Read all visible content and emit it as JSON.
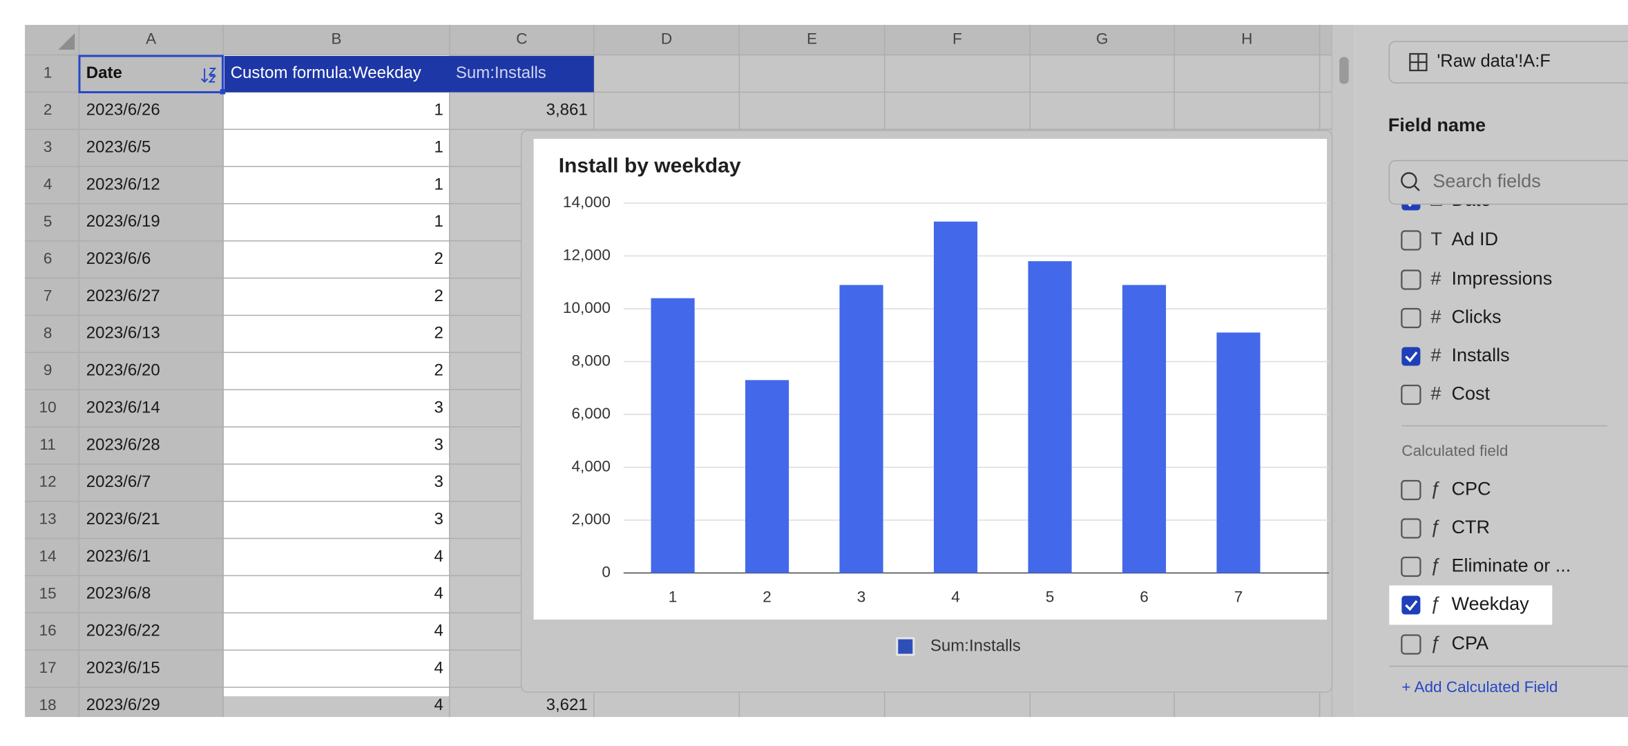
{
  "sheet": {
    "column_headers": [
      "A",
      "B",
      "C",
      "D",
      "E",
      "F",
      "G",
      "H"
    ],
    "row_numbers": [
      "1",
      "2",
      "3",
      "4",
      "5",
      "6",
      "7",
      "8",
      "9",
      "10",
      "11",
      "12",
      "13",
      "14",
      "15",
      "16",
      "17",
      "18"
    ],
    "header": [
      "Date",
      "Custom formula:Weekday",
      "Sum:Installs"
    ],
    "rows": [
      {
        "date": "2023/6/26",
        "weekday": "1",
        "installs": "3,861"
      },
      {
        "date": "2023/6/5",
        "weekday": "1"
      },
      {
        "date": "2023/6/12",
        "weekday": "1"
      },
      {
        "date": "2023/6/19",
        "weekday": "1"
      },
      {
        "date": "2023/6/6",
        "weekday": "2"
      },
      {
        "date": "2023/6/27",
        "weekday": "2"
      },
      {
        "date": "2023/6/13",
        "weekday": "2"
      },
      {
        "date": "2023/6/20",
        "weekday": "2"
      },
      {
        "date": "2023/6/14",
        "weekday": "3"
      },
      {
        "date": "2023/6/28",
        "weekday": "3"
      },
      {
        "date": "2023/6/7",
        "weekday": "3"
      },
      {
        "date": "2023/6/21",
        "weekday": "3"
      },
      {
        "date": "2023/6/1",
        "weekday": "4"
      },
      {
        "date": "2023/6/8",
        "weekday": "4"
      },
      {
        "date": "2023/6/22",
        "weekday": "4"
      },
      {
        "date": "2023/6/15",
        "weekday": "4"
      },
      {
        "date": "2023/6/29",
        "weekday": "4",
        "installs": "3,621"
      }
    ]
  },
  "chart_data": {
    "type": "bar",
    "title": "Install by weekday",
    "categories": [
      "1",
      "2",
      "3",
      "4",
      "5",
      "6",
      "7"
    ],
    "series": [
      {
        "name": "Sum:Installs",
        "color": "#4369ea",
        "values": [
          10400,
          7300,
          10900,
          13300,
          11800,
          10900,
          9100
        ]
      }
    ],
    "ylim": [
      0,
      14000
    ],
    "yticks": [
      0,
      {
        "value": 2000,
        "label": "2,000"
      },
      {
        "value": 4000,
        "label": "4,000"
      },
      {
        "value": 6000,
        "label": "6,000"
      },
      {
        "value": 8000,
        "label": "8,000"
      },
      {
        "value": 10000,
        "label": "10,000"
      },
      {
        "value": 12000,
        "label": "12,000"
      },
      {
        "value": 14000,
        "label": "14,000"
      }
    ],
    "grid": true,
    "legend": "bottom"
  },
  "panel": {
    "source": "'Raw data'!A:F",
    "field_title": "Field name",
    "search_placeholder": "Search fields",
    "fields": [
      {
        "icon": "□",
        "label": "Date",
        "checked": true
      },
      {
        "icon": "T",
        "label": "Ad ID",
        "checked": false
      },
      {
        "icon": "#",
        "label": "Impressions",
        "checked": false
      },
      {
        "icon": "#",
        "label": "Clicks",
        "checked": false
      },
      {
        "icon": "#",
        "label": "Installs",
        "checked": true
      },
      {
        "icon": "#",
        "label": "Cost",
        "checked": false
      }
    ],
    "calculated_title": "Calculated field",
    "calculated": [
      {
        "icon": "ƒ",
        "label": "CPC",
        "checked": false
      },
      {
        "icon": "ƒ",
        "label": "CTR",
        "checked": false
      },
      {
        "icon": "ƒ",
        "label": "Eliminate or ...",
        "checked": false
      },
      {
        "icon": "ƒ",
        "label": "Weekday",
        "checked": true
      },
      {
        "icon": "ƒ",
        "label": "CPA",
        "checked": false
      }
    ],
    "add_link": "+ Add Calculated Field"
  }
}
